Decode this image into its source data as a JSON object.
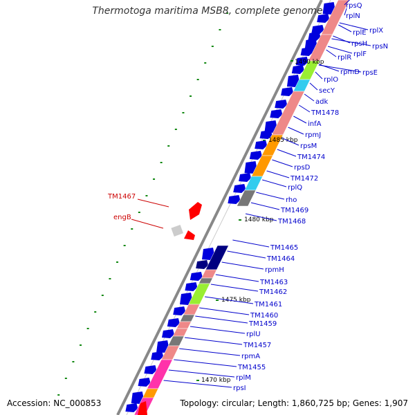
{
  "title": "Thermotoga maritima MSB8, complete genome",
  "accession": "Accession: NC_000853",
  "topology": "Topology: circular; Length: 1,860,725 bp; Genes: 1,907",
  "colors": {
    "backbone": "#888888",
    "forward_gene": "#0000dd",
    "reverse_gene": "#ff0000",
    "label_forward": "#0000cc",
    "label_reverse": "#cc0000",
    "tick": "#118811",
    "track_salmon": "#ee8888",
    "track_green": "#99ee33",
    "track_cyan": "#33ccee",
    "track_orange": "#ff9900",
    "track_magenta": "#ff33aa",
    "track_grey": "#777777"
  },
  "scale_labels": [
    "1490 kbp",
    "1485 kbp",
    "1480 kbp",
    "1475 kbp",
    "1470 kbp"
  ],
  "forward_labels": [
    "rpsQ",
    "rplN",
    "rplE",
    "rplX",
    "rpsN",
    "rpsH",
    "rplF",
    "rplR",
    "rpmD",
    "rpsE",
    "rplO",
    "secY",
    "adk",
    "TM1478",
    "infA",
    "rpmJ",
    "rpsM",
    "TM1474",
    "rpsD",
    "TM1472",
    "rplQ",
    "rho",
    "TM1469",
    "TM1468",
    "TM1465",
    "TM1464",
    "rpmH",
    "TM1463",
    "TM1462",
    "TM1461",
    "TM1460",
    "TM1459",
    "rplU",
    "TM1457",
    "rpmA",
    "TM1455",
    "rplM",
    "rpsI"
  ],
  "reverse_labels": [
    "TM1467",
    "engB"
  ]
}
